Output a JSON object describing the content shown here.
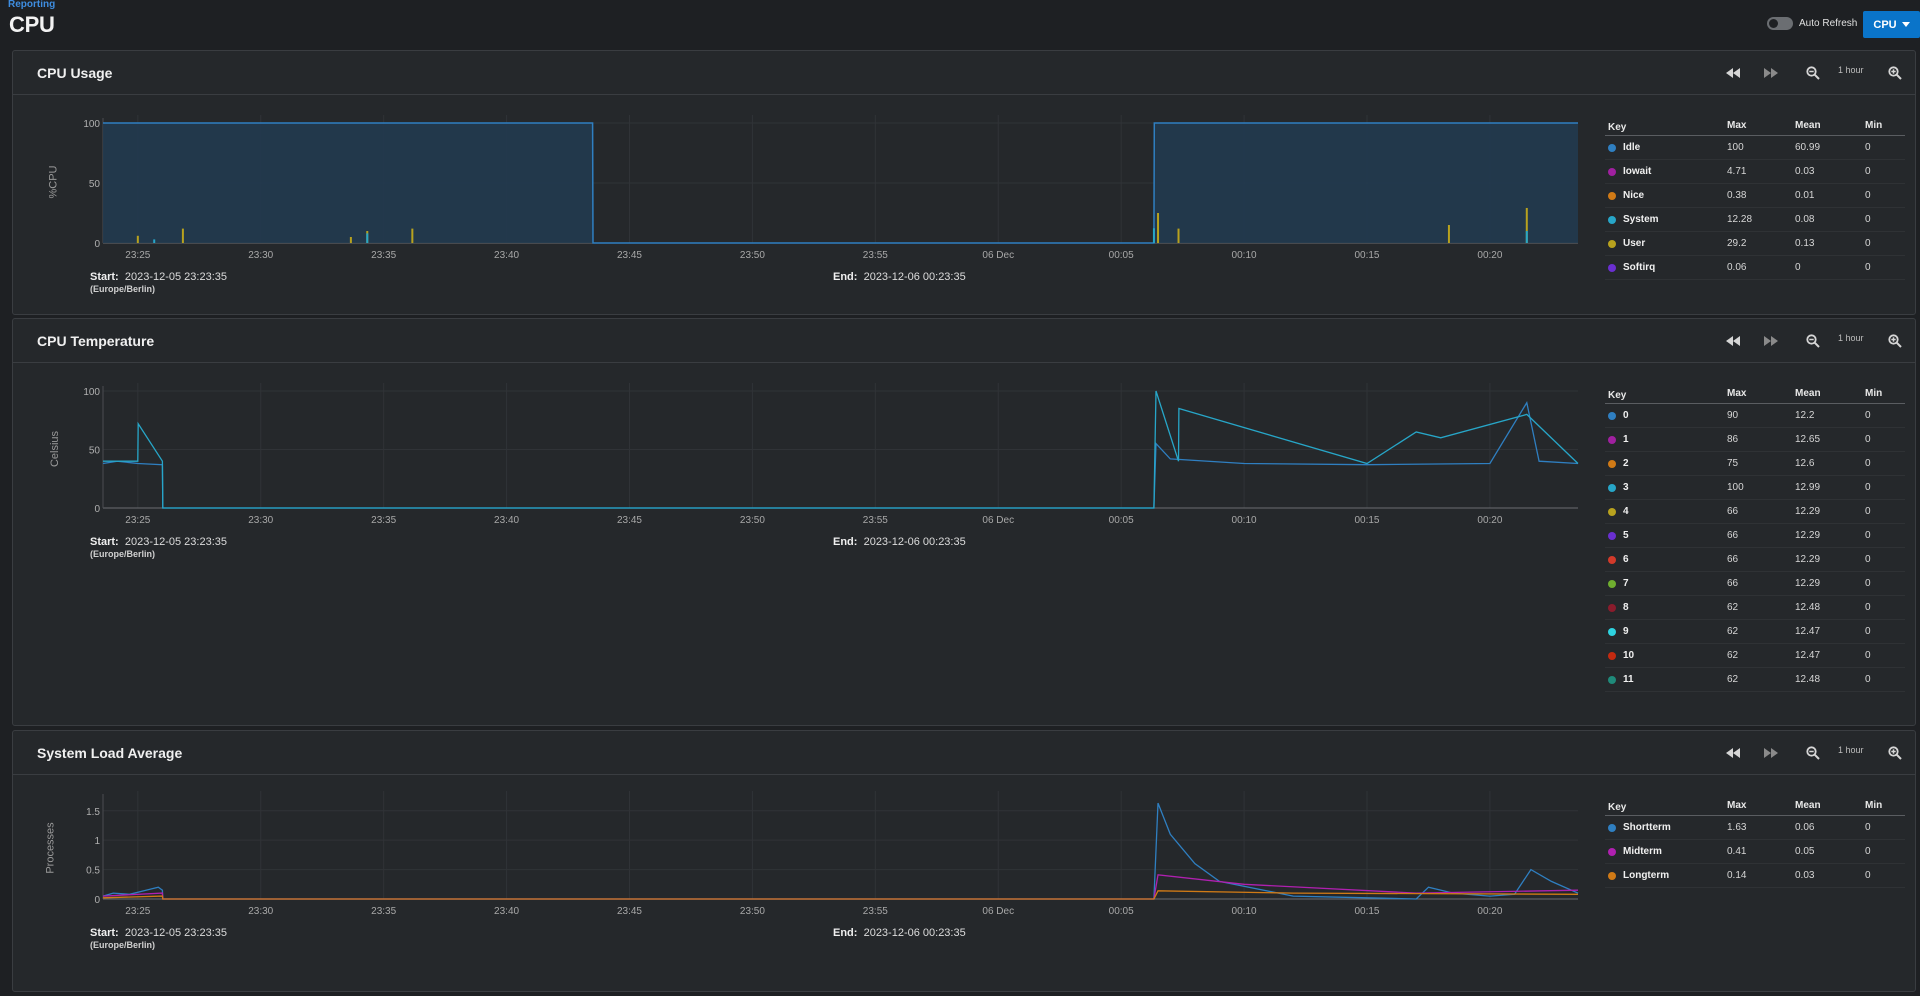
{
  "breadcrumb": "Reporting",
  "page_title": "CPU",
  "auto_refresh_label": "Auto Refresh",
  "report_select": "CPU",
  "range_label": "1 hour",
  "x_ticks": [
    "23:25",
    "23:30",
    "23:35",
    "23:40",
    "23:45",
    "23:50",
    "23:55",
    "06 Dec",
    "00:05",
    "00:10",
    "00:15",
    "00:20"
  ],
  "start_label": "Start:",
  "end_label": "End:",
  "start_value": "2023-12-05 23:23:35",
  "end_value": "2023-12-06 00:23:35",
  "timezone": "(Europe/Berlin)",
  "legend_headers": {
    "key": "Key",
    "max": "Max",
    "mean": "Mean",
    "min": "Min"
  },
  "panels": {
    "usage": {
      "title": "CPU Usage",
      "ylabel": "%CPU",
      "yticks": [
        "100",
        "50",
        "0"
      ],
      "legend": [
        {
          "name": "Idle",
          "max": "100",
          "mean": "60.99",
          "min": "0",
          "color": "#2f7fc1"
        },
        {
          "name": "Iowait",
          "max": "4.71",
          "mean": "0.03",
          "min": "0",
          "color": "#a020a0"
        },
        {
          "name": "Nice",
          "max": "0.38",
          "mean": "0.01",
          "min": "0",
          "color": "#d07a16"
        },
        {
          "name": "System",
          "max": "12.28",
          "mean": "0.08",
          "min": "0",
          "color": "#27a6c8"
        },
        {
          "name": "User",
          "max": "29.2",
          "mean": "0.13",
          "min": "0",
          "color": "#b8a21e"
        },
        {
          "name": "Softirq",
          "max": "0.06",
          "mean": "0",
          "min": "0",
          "color": "#6a2fd0"
        }
      ]
    },
    "temperature": {
      "title": "CPU Temperature",
      "ylabel": "Celsius",
      "yticks": [
        "100",
        "50",
        "0"
      ],
      "legend": [
        {
          "name": "0",
          "max": "90",
          "mean": "12.2",
          "min": "0",
          "color": "#2f7fc1"
        },
        {
          "name": "1",
          "max": "86",
          "mean": "12.65",
          "min": "0",
          "color": "#a020a0"
        },
        {
          "name": "2",
          "max": "75",
          "mean": "12.6",
          "min": "0",
          "color": "#d07a16"
        },
        {
          "name": "3",
          "max": "100",
          "mean": "12.99",
          "min": "0",
          "color": "#27a6c8"
        },
        {
          "name": "4",
          "max": "66",
          "mean": "12.29",
          "min": "0",
          "color": "#b8a21e"
        },
        {
          "name": "5",
          "max": "66",
          "mean": "12.29",
          "min": "0",
          "color": "#6a2fd0"
        },
        {
          "name": "6",
          "max": "66",
          "mean": "12.29",
          "min": "0",
          "color": "#d23a2a"
        },
        {
          "name": "7",
          "max": "66",
          "mean": "12.29",
          "min": "0",
          "color": "#6fae2f"
        },
        {
          "name": "8",
          "max": "62",
          "mean": "12.48",
          "min": "0",
          "color": "#8a1c2c"
        },
        {
          "name": "9",
          "max": "62",
          "mean": "12.47",
          "min": "0",
          "color": "#2ed3e0"
        },
        {
          "name": "10",
          "max": "62",
          "mean": "12.47",
          "min": "0",
          "color": "#c42a10"
        },
        {
          "name": "11",
          "max": "62",
          "mean": "12.48",
          "min": "0",
          "color": "#1f8a7a"
        }
      ]
    },
    "load": {
      "title": "System Load Average",
      "ylabel": "Processes",
      "yticks": [
        "1.5",
        "1",
        "0.5",
        "0"
      ],
      "legend": [
        {
          "name": "Shortterm",
          "max": "1.63",
          "mean": "0.06",
          "min": "0",
          "color": "#2f7fc1"
        },
        {
          "name": "Midterm",
          "max": "0.41",
          "mean": "0.05",
          "min": "0",
          "color": "#b020b0"
        },
        {
          "name": "Longterm",
          "max": "0.14",
          "mean": "0.03",
          "min": "0",
          "color": "#d07a16"
        }
      ]
    }
  },
  "chart_data": [
    {
      "type": "area",
      "title": "CPU Usage",
      "ylabel": "%CPU",
      "ylim": [
        0,
        100
      ],
      "x_range": [
        "2023-12-05 23:23:35",
        "2023-12-06 00:23:35"
      ],
      "series": [
        {
          "name": "Idle",
          "x": [
            "23:23:35",
            "23:43:30",
            "23:43:31",
            "00:06:20",
            "00:06:21",
            "00:23:35"
          ],
          "values": [
            100,
            100,
            0,
            0,
            100,
            100
          ]
        },
        {
          "name": "User",
          "x": [
            "23:25:00",
            "23:26:50",
            "23:33:40",
            "23:34:20",
            "23:36:10",
            "00:06:30",
            "00:07:20",
            "00:18:20",
            "00:21:30"
          ],
          "values": [
            6,
            12,
            5,
            10,
            12,
            25,
            12,
            15,
            29.2
          ]
        },
        {
          "name": "System",
          "x": [
            "23:25:40",
            "23:34:20",
            "00:06:20",
            "00:21:30"
          ],
          "values": [
            3,
            8,
            12.28,
            10
          ]
        }
      ]
    },
    {
      "type": "line",
      "title": "CPU Temperature",
      "ylabel": "Celsius",
      "ylim": [
        0,
        100
      ],
      "x_range": [
        "2023-12-05 23:23:35",
        "2023-12-06 00:23:35"
      ],
      "series": [
        {
          "name": "0",
          "x": [
            "23:23:35",
            "23:24:10",
            "23:25:00",
            "23:26:00",
            "23:26:01",
            "00:06:20",
            "00:06:25",
            "00:07:00",
            "00:10:00",
            "00:15:00",
            "00:20:00",
            "00:21:30",
            "00:22:00",
            "00:23:35"
          ],
          "values": [
            38,
            40,
            38,
            37,
            0,
            0,
            55,
            42,
            38,
            37,
            38,
            90,
            40,
            38
          ]
        },
        {
          "name": "3",
          "x": [
            "23:23:35",
            "23:25:00",
            "23:25:01",
            "23:26:00",
            "23:26:01",
            "00:06:20",
            "00:06:25",
            "00:07:20",
            "00:07:21",
            "00:15:00",
            "00:17:00",
            "00:18:00",
            "00:21:30",
            "00:23:35"
          ],
          "values": [
            40,
            40,
            72,
            40,
            0,
            0,
            100,
            40,
            85,
            38,
            65,
            60,
            80,
            38
          ]
        }
      ]
    },
    {
      "type": "line",
      "title": "System Load Average",
      "ylabel": "Processes",
      "ylim": [
        0,
        1.7
      ],
      "x_range": [
        "2023-12-05 23:23:35",
        "2023-12-06 00:23:35"
      ],
      "series": [
        {
          "name": "Shortterm",
          "x": [
            "23:23:35",
            "23:24:00",
            "23:24:40",
            "23:25:20",
            "23:25:50",
            "23:26:00",
            "23:26:01",
            "00:06:20",
            "00:06:30",
            "00:07:00",
            "00:08:00",
            "00:09:00",
            "00:12:00",
            "00:15:00",
            "00:17:00",
            "00:17:30",
            "00:18:30",
            "00:20:00",
            "00:21:00",
            "00:21:40",
            "00:22:30",
            "00:23:35"
          ],
          "values": [
            0.05,
            0.1,
            0.08,
            0.15,
            0.2,
            0.15,
            0,
            0,
            1.63,
            1.1,
            0.6,
            0.3,
            0.05,
            0.02,
            0,
            0.2,
            0.1,
            0.05,
            0.08,
            0.5,
            0.3,
            0.1
          ]
        },
        {
          "name": "Midterm",
          "x": [
            "23:23:35",
            "23:26:00",
            "23:26:01",
            "00:06:20",
            "00:06:30",
            "00:10:00",
            "00:17:00",
            "00:23:35"
          ],
          "values": [
            0.05,
            0.1,
            0,
            0,
            0.41,
            0.25,
            0.1,
            0.15
          ]
        },
        {
          "name": "Longterm",
          "x": [
            "23:23:35",
            "23:26:00",
            "23:26:01",
            "00:06:20",
            "00:06:30",
            "00:12:00",
            "00:23:35"
          ],
          "values": [
            0.02,
            0.05,
            0,
            0,
            0.14,
            0.1,
            0.08
          ]
        }
      ]
    }
  ]
}
